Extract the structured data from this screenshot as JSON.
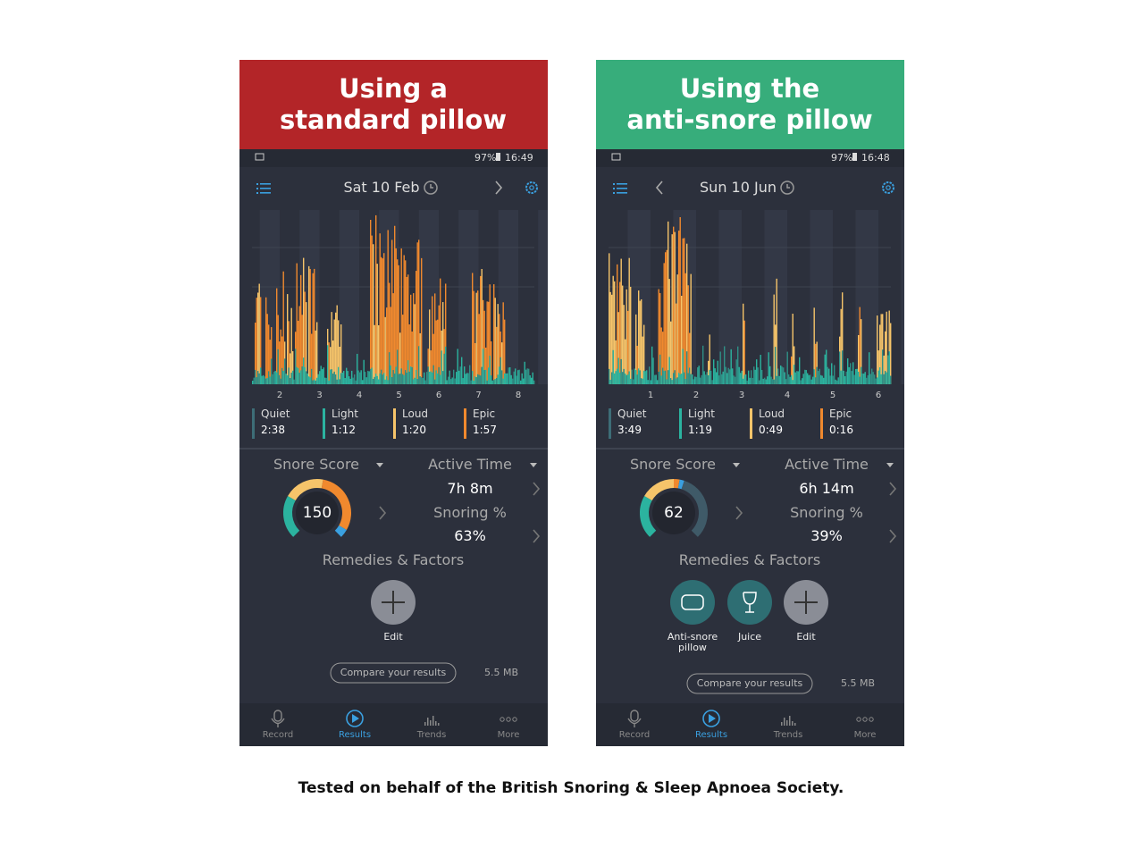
{
  "panels": [
    {
      "banner": [
        "Using a",
        "standard pillow"
      ],
      "status": {
        "battery": "97%",
        "time": "16:49"
      },
      "date": "Sat 10 Feb",
      "hours": [
        "2",
        "3",
        "4",
        "5",
        "6",
        "7",
        "8"
      ],
      "legend": [
        {
          "label": "Quiet",
          "value": "2:38"
        },
        {
          "label": "Light",
          "value": "1:12"
        },
        {
          "label": "Loud",
          "value": "1:20"
        },
        {
          "label": "Epic",
          "value": "1:57"
        }
      ],
      "snore_score_label": "Snore Score",
      "score": "150",
      "active_time_label": "Active Time",
      "active_time": "7h 8m",
      "snoring_label": "Snoring %",
      "snoring": "63%",
      "remedies_label": "Remedies & Factors",
      "remedies": [
        "Edit"
      ],
      "compare": "Compare your results",
      "size": "5.5 MB",
      "nav": [
        "Record",
        "Results",
        "Trends",
        "More"
      ]
    },
    {
      "banner": [
        "Using the",
        "anti-snore pillow"
      ],
      "status": {
        "battery": "97%",
        "time": "16:48"
      },
      "date": "Sun 10 Jun",
      "hours": [
        "1",
        "2",
        "3",
        "4",
        "5",
        "6"
      ],
      "legend": [
        {
          "label": "Quiet",
          "value": "3:49"
        },
        {
          "label": "Light",
          "value": "1:19"
        },
        {
          "label": "Loud",
          "value": "0:49"
        },
        {
          "label": "Epic",
          "value": "0:16"
        }
      ],
      "snore_score_label": "Snore Score",
      "score": "62",
      "active_time_label": "Active Time",
      "active_time": "6h 14m",
      "snoring_label": "Snoring %",
      "snoring": "39%",
      "remedies_label": "Remedies & Factors",
      "remedies": [
        "Anti-snore pillow",
        "Juice",
        "Edit"
      ],
      "compare": "Compare your results",
      "size": "5.5 MB",
      "nav": [
        "Record",
        "Results",
        "Trends",
        "More"
      ]
    }
  ],
  "footer": "Tested on behalf of the British Snoring & Sleep Apnoea Society."
}
